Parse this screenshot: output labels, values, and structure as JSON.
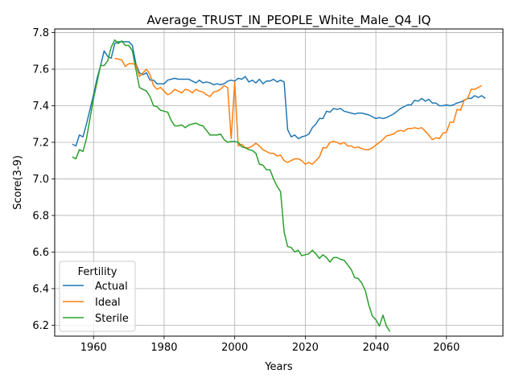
{
  "chart_data": {
    "type": "line",
    "title": "Average_TRUST_IN_PEOPLE_White_Male_Q4_IQ",
    "xlabel": "Years",
    "ylabel": "Score(3-9)",
    "xlim": [
      1949,
      2076
    ],
    "ylim": [
      6.14,
      7.82
    ],
    "xticks": [
      1960,
      1980,
      2000,
      2020,
      2040,
      2060
    ],
    "yticks": [
      6.2,
      6.4,
      6.6,
      6.8,
      7.0,
      7.2,
      7.4,
      7.6,
      7.8
    ],
    "grid": true,
    "legend": {
      "title": "Fertility",
      "placement": "bottom-left"
    },
    "series": [
      {
        "name": "Actual",
        "color": "#1f77b4",
        "points": [
          [
            1954,
            7.19
          ],
          [
            1955,
            7.18
          ],
          [
            1956,
            7.24
          ],
          [
            1957,
            7.23
          ],
          [
            1958,
            7.3
          ],
          [
            1959,
            7.38
          ],
          [
            1960,
            7.46
          ],
          [
            1961,
            7.55
          ],
          [
            1962,
            7.62
          ],
          [
            1963,
            7.7
          ],
          [
            1964,
            7.67
          ],
          [
            1965,
            7.66
          ],
          [
            1966,
            7.74
          ],
          [
            1967,
            7.75
          ],
          [
            1968,
            7.75
          ],
          [
            1969,
            7.75
          ],
          [
            1970,
            7.75
          ],
          [
            1971,
            7.73
          ],
          [
            1972,
            7.63
          ],
          [
            1973,
            7.58
          ],
          [
            1974,
            7.57
          ],
          [
            1975,
            7.58
          ],
          [
            1976,
            7.54
          ],
          [
            1977,
            7.54
          ],
          [
            1978,
            7.52
          ],
          [
            1979,
            7.52
          ],
          [
            1980,
            7.52
          ],
          [
            1981,
            7.54
          ],
          [
            1982,
            7.545
          ],
          [
            1983,
            7.55
          ],
          [
            1984,
            7.545
          ],
          [
            1985,
            7.545
          ],
          [
            1986,
            7.545
          ],
          [
            1987,
            7.545
          ],
          [
            1988,
            7.535
          ],
          [
            1989,
            7.525
          ],
          [
            1990,
            7.54
          ],
          [
            1991,
            7.525
          ],
          [
            1992,
            7.53
          ],
          [
            1993,
            7.525
          ],
          [
            1994,
            7.515
          ],
          [
            1995,
            7.52
          ],
          [
            1996,
            7.515
          ],
          [
            1997,
            7.52
          ],
          [
            1998,
            7.535
          ],
          [
            1999,
            7.54
          ],
          [
            2000,
            7.535
          ],
          [
            2001,
            7.55
          ],
          [
            2002,
            7.545
          ],
          [
            2003,
            7.56
          ],
          [
            2004,
            7.53
          ],
          [
            2005,
            7.54
          ],
          [
            2006,
            7.525
          ],
          [
            2007,
            7.545
          ],
          [
            2008,
            7.52
          ],
          [
            2009,
            7.535
          ],
          [
            2010,
            7.535
          ],
          [
            2011,
            7.545
          ],
          [
            2012,
            7.53
          ],
          [
            2013,
            7.54
          ],
          [
            2014,
            7.53
          ],
          [
            2015,
            7.27
          ],
          [
            2016,
            7.23
          ],
          [
            2017,
            7.24
          ],
          [
            2018,
            7.22
          ],
          [
            2019,
            7.23
          ],
          [
            2020,
            7.235
          ],
          [
            2021,
            7.245
          ],
          [
            2022,
            7.28
          ],
          [
            2023,
            7.3
          ],
          [
            2024,
            7.33
          ],
          [
            2025,
            7.33
          ],
          [
            2026,
            7.37
          ],
          [
            2027,
            7.365
          ],
          [
            2028,
            7.385
          ],
          [
            2029,
            7.38
          ],
          [
            2030,
            7.385
          ],
          [
            2031,
            7.37
          ],
          [
            2032,
            7.365
          ],
          [
            2033,
            7.36
          ],
          [
            2034,
            7.355
          ],
          [
            2035,
            7.36
          ],
          [
            2036,
            7.36
          ],
          [
            2037,
            7.355
          ],
          [
            2038,
            7.35
          ],
          [
            2039,
            7.34
          ],
          [
            2040,
            7.33
          ],
          [
            2041,
            7.335
          ],
          [
            2042,
            7.33
          ],
          [
            2043,
            7.335
          ],
          [
            2044,
            7.345
          ],
          [
            2045,
            7.355
          ],
          [
            2046,
            7.37
          ],
          [
            2047,
            7.385
          ],
          [
            2048,
            7.395
          ],
          [
            2049,
            7.405
          ],
          [
            2050,
            7.405
          ],
          [
            2051,
            7.43
          ],
          [
            2052,
            7.425
          ],
          [
            2053,
            7.44
          ],
          [
            2054,
            7.425
          ],
          [
            2055,
            7.435
          ],
          [
            2056,
            7.415
          ],
          [
            2057,
            7.415
          ],
          [
            2058,
            7.4
          ],
          [
            2059,
            7.4
          ],
          [
            2060,
            7.405
          ],
          [
            2061,
            7.4
          ],
          [
            2062,
            7.405
          ],
          [
            2063,
            7.415
          ],
          [
            2064,
            7.42
          ],
          [
            2065,
            7.43
          ],
          [
            2066,
            7.44
          ],
          [
            2067,
            7.44
          ],
          [
            2068,
            7.455
          ],
          [
            2069,
            7.445
          ],
          [
            2070,
            7.455
          ],
          [
            2071,
            7.44
          ]
        ]
      },
      {
        "name": "Ideal",
        "color": "#ff7f0e",
        "points": [
          [
            1966,
            7.66
          ],
          [
            1967,
            7.655
          ],
          [
            1968,
            7.65
          ],
          [
            1969,
            7.615
          ],
          [
            1970,
            7.63
          ],
          [
            1971,
            7.63
          ],
          [
            1972,
            7.625
          ],
          [
            1973,
            7.56
          ],
          [
            1974,
            7.58
          ],
          [
            1975,
            7.6
          ],
          [
            1976,
            7.57
          ],
          [
            1977,
            7.51
          ],
          [
            1978,
            7.49
          ],
          [
            1979,
            7.5
          ],
          [
            1980,
            7.48
          ],
          [
            1981,
            7.46
          ],
          [
            1982,
            7.47
          ],
          [
            1983,
            7.49
          ],
          [
            1984,
            7.48
          ],
          [
            1985,
            7.47
          ],
          [
            1986,
            7.49
          ],
          [
            1987,
            7.485
          ],
          [
            1988,
            7.47
          ],
          [
            1989,
            7.49
          ],
          [
            1990,
            7.48
          ],
          [
            1991,
            7.475
          ],
          [
            1992,
            7.46
          ],
          [
            1993,
            7.45
          ],
          [
            1994,
            7.475
          ],
          [
            1995,
            7.48
          ],
          [
            1996,
            7.49
          ],
          [
            1997,
            7.51
          ],
          [
            1998,
            7.5
          ],
          [
            1999,
            7.22
          ],
          [
            2000,
            7.53
          ],
          [
            2001,
            7.18
          ],
          [
            2002,
            7.19
          ],
          [
            2003,
            7.17
          ],
          [
            2004,
            7.17
          ],
          [
            2005,
            7.18
          ],
          [
            2006,
            7.195
          ],
          [
            2007,
            7.18
          ],
          [
            2008,
            7.16
          ],
          [
            2009,
            7.15
          ],
          [
            2010,
            7.14
          ],
          [
            2011,
            7.14
          ],
          [
            2012,
            7.125
          ],
          [
            2013,
            7.13
          ],
          [
            2014,
            7.1
          ],
          [
            2015,
            7.09
          ],
          [
            2016,
            7.1
          ],
          [
            2017,
            7.11
          ],
          [
            2018,
            7.11
          ],
          [
            2019,
            7.1
          ],
          [
            2020,
            7.08
          ],
          [
            2021,
            7.09
          ],
          [
            2022,
            7.08
          ],
          [
            2023,
            7.1
          ],
          [
            2024,
            7.12
          ],
          [
            2025,
            7.17
          ],
          [
            2026,
            7.17
          ],
          [
            2027,
            7.2
          ],
          [
            2028,
            7.205
          ],
          [
            2029,
            7.2
          ],
          [
            2030,
            7.19
          ],
          [
            2031,
            7.2
          ],
          [
            2032,
            7.18
          ],
          [
            2033,
            7.18
          ],
          [
            2034,
            7.17
          ],
          [
            2035,
            7.175
          ],
          [
            2036,
            7.165
          ],
          [
            2037,
            7.16
          ],
          [
            2038,
            7.16
          ],
          [
            2039,
            7.17
          ],
          [
            2040,
            7.185
          ],
          [
            2041,
            7.2
          ],
          [
            2042,
            7.215
          ],
          [
            2043,
            7.235
          ],
          [
            2044,
            7.24
          ],
          [
            2045,
            7.245
          ],
          [
            2046,
            7.26
          ],
          [
            2047,
            7.265
          ],
          [
            2048,
            7.26
          ],
          [
            2049,
            7.275
          ],
          [
            2050,
            7.275
          ],
          [
            2051,
            7.28
          ],
          [
            2052,
            7.275
          ],
          [
            2053,
            7.28
          ],
          [
            2054,
            7.26
          ],
          [
            2055,
            7.24
          ],
          [
            2056,
            7.215
          ],
          [
            2057,
            7.225
          ],
          [
            2058,
            7.22
          ],
          [
            2059,
            7.25
          ],
          [
            2060,
            7.255
          ],
          [
            2061,
            7.31
          ],
          [
            2062,
            7.31
          ],
          [
            2063,
            7.38
          ],
          [
            2064,
            7.375
          ],
          [
            2065,
            7.43
          ],
          [
            2066,
            7.44
          ],
          [
            2067,
            7.49
          ],
          [
            2068,
            7.49
          ],
          [
            2069,
            7.5
          ],
          [
            2070,
            7.51
          ]
        ]
      },
      {
        "name": "Sterile",
        "color": "#2ca02c",
        "points": [
          [
            1954,
            7.12
          ],
          [
            1955,
            7.11
          ],
          [
            1956,
            7.16
          ],
          [
            1957,
            7.15
          ],
          [
            1958,
            7.22
          ],
          [
            1959,
            7.33
          ],
          [
            1960,
            7.44
          ],
          [
            1961,
            7.53
          ],
          [
            1962,
            7.62
          ],
          [
            1963,
            7.62
          ],
          [
            1964,
            7.645
          ],
          [
            1965,
            7.72
          ],
          [
            1966,
            7.76
          ],
          [
            1967,
            7.74
          ],
          [
            1968,
            7.755
          ],
          [
            1969,
            7.73
          ],
          [
            1970,
            7.73
          ],
          [
            1971,
            7.7
          ],
          [
            1972,
            7.6
          ],
          [
            1973,
            7.5
          ],
          [
            1974,
            7.49
          ],
          [
            1975,
            7.48
          ],
          [
            1976,
            7.45
          ],
          [
            1977,
            7.4
          ],
          [
            1978,
            7.395
          ],
          [
            1979,
            7.375
          ],
          [
            1980,
            7.37
          ],
          [
            1981,
            7.365
          ],
          [
            1982,
            7.32
          ],
          [
            1983,
            7.29
          ],
          [
            1984,
            7.29
          ],
          [
            1985,
            7.295
          ],
          [
            1986,
            7.28
          ],
          [
            1987,
            7.295
          ],
          [
            1988,
            7.3
          ],
          [
            1989,
            7.305
          ],
          [
            1990,
            7.295
          ],
          [
            1991,
            7.29
          ],
          [
            1992,
            7.265
          ],
          [
            1993,
            7.24
          ],
          [
            1994,
            7.24
          ],
          [
            1995,
            7.24
          ],
          [
            1996,
            7.245
          ],
          [
            1997,
            7.215
          ],
          [
            1998,
            7.2
          ],
          [
            1999,
            7.205
          ],
          [
            2000,
            7.205
          ],
          [
            2001,
            7.2
          ],
          [
            2002,
            7.175
          ],
          [
            2003,
            7.17
          ],
          [
            2004,
            7.16
          ],
          [
            2005,
            7.155
          ],
          [
            2006,
            7.14
          ],
          [
            2007,
            7.08
          ],
          [
            2008,
            7.075
          ],
          [
            2009,
            7.05
          ],
          [
            2010,
            7.05
          ],
          [
            2011,
            7.0
          ],
          [
            2012,
            6.96
          ],
          [
            2013,
            6.93
          ],
          [
            2014,
            6.71
          ],
          [
            2015,
            6.63
          ],
          [
            2016,
            6.625
          ],
          [
            2017,
            6.6
          ],
          [
            2018,
            6.61
          ],
          [
            2019,
            6.58
          ],
          [
            2020,
            6.585
          ],
          [
            2021,
            6.59
          ],
          [
            2022,
            6.61
          ],
          [
            2023,
            6.59
          ],
          [
            2024,
            6.565
          ],
          [
            2025,
            6.585
          ],
          [
            2026,
            6.57
          ],
          [
            2027,
            6.545
          ],
          [
            2028,
            6.57
          ],
          [
            2029,
            6.57
          ],
          [
            2030,
            6.56
          ],
          [
            2031,
            6.555
          ],
          [
            2032,
            6.53
          ],
          [
            2033,
            6.505
          ],
          [
            2034,
            6.46
          ],
          [
            2035,
            6.455
          ],
          [
            2036,
            6.43
          ],
          [
            2037,
            6.39
          ],
          [
            2038,
            6.31
          ],
          [
            2039,
            6.25
          ],
          [
            2040,
            6.23
          ],
          [
            2041,
            6.195
          ],
          [
            2042,
            6.255
          ],
          [
            2043,
            6.195
          ],
          [
            2044,
            6.165
          ]
        ]
      }
    ]
  }
}
